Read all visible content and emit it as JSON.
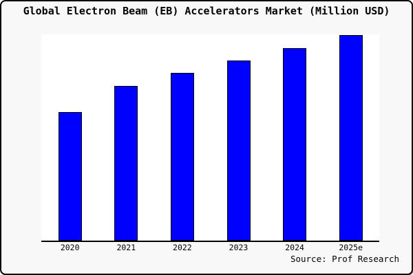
{
  "frame": {
    "background_color": "#f8f8f8",
    "border_color": "#000000"
  },
  "title": "Global Electron Beam (EB) Accelerators Market (Million USD)",
  "source_caption": "Source: Prof Research",
  "chart_data": {
    "type": "bar",
    "categories": [
      "2020",
      "2021",
      "2022",
      "2023",
      "2024",
      "2025e"
    ],
    "values": [
      62.7,
      75.1,
      81.5,
      87.6,
      93.8,
      100
    ],
    "title": "Global Electron Beam (EB) Accelerators Market (Million USD)",
    "xlabel": "",
    "ylabel": "",
    "ylim": [
      0,
      100
    ],
    "y_axis_shown": false,
    "grid": false,
    "legend": "none",
    "bar_color": "#0000ff",
    "bar_edge_color": "#000000",
    "note": "No y-axis scale is shown in the image; values are relative bar heights as % of the tallest bar (2025e)."
  }
}
